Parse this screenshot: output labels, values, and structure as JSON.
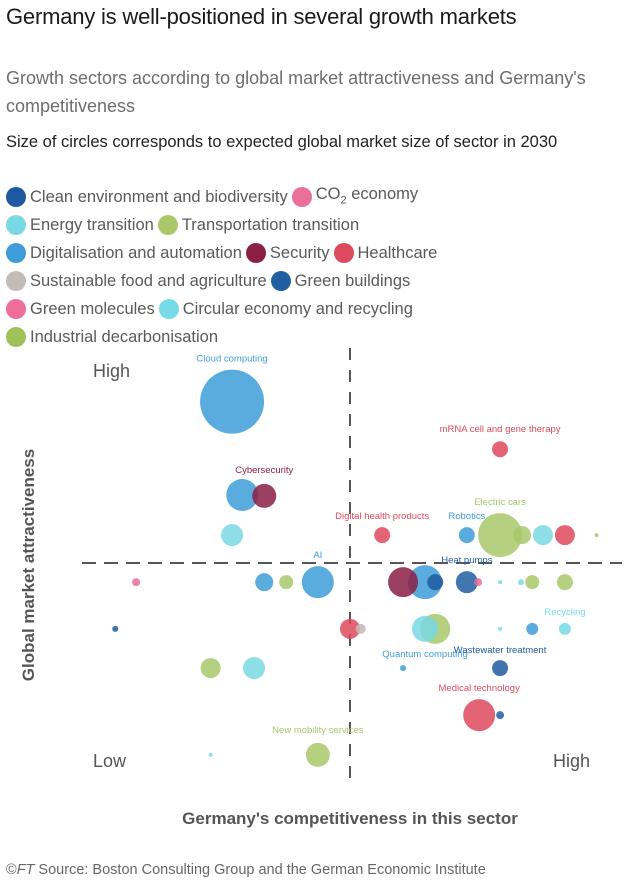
{
  "header": {
    "title": "Germany is well-positioned in several growth markets",
    "subtitle": "Growth sectors according to global market attractiveness and Germany's competitiveness",
    "note": "Size of circles corresponds to expected global market size of sector in 2030"
  },
  "colors": {
    "clean_env": "#1f5aa0",
    "co2": "#ea6f99",
    "energy": "#79d8e3",
    "transport": "#a8c86a",
    "digital": "#3e9dd8",
    "security": "#8b1f45",
    "healthcare": "#de4a5d",
    "food": "#c4bbb6",
    "green_buildings": "#205ea2",
    "green_molecules": "#ee6e98",
    "circular": "#76dbe6",
    "industrial": "#9ec258"
  },
  "legend": {
    "rows": [
      [
        {
          "key": "clean_env",
          "label": "Clean environment and biodiversity"
        },
        {
          "key": "co2",
          "label": "CO",
          "sub": "2",
          "suffix": " economy"
        }
      ],
      [
        {
          "key": "energy",
          "label": "Energy transition"
        },
        {
          "key": "transport",
          "label": "Transportation transition"
        }
      ],
      [
        {
          "key": "digital",
          "label": "Digitalisation and automation"
        },
        {
          "key": "security",
          "label": "Security"
        },
        {
          "key": "healthcare",
          "label": "Healthcare"
        }
      ],
      [
        {
          "key": "food",
          "label": "Sustainable food and agriculture"
        },
        {
          "key": "green_buildings",
          "label": "Green buildings"
        }
      ],
      [
        {
          "key": "green_molecules",
          "label": "Green molecules"
        },
        {
          "key": "circular",
          "label": "Circular economy and recycling"
        }
      ],
      [
        {
          "key": "industrial",
          "label": "Industrial decarbonisation"
        }
      ]
    ]
  },
  "chart_data": {
    "type": "scatter",
    "subtype": "bubble",
    "title": "Germany is well-positioned in several growth markets",
    "xlabel": "Germany's competitiveness in this sector",
    "ylabel": "Global market attractiveness",
    "x_axis_words": {
      "low": "Low",
      "high": "High"
    },
    "y_axis_words": {
      "high": "High"
    },
    "xlim": [
      0,
      10
    ],
    "ylim": [
      0,
      10
    ],
    "divider": {
      "x": 5,
      "y": 5
    },
    "grid": false,
    "size_note": "relative expected global market size in 2030",
    "points": [
      {
        "label": "Cloud computing",
        "sector": "digital",
        "x": 2.8,
        "y": 8.7,
        "size": 32
      },
      {
        "label": "Cybersecurity",
        "sector": "digital",
        "x": 2.99,
        "y": 6.56,
        "size": 16
      },
      {
        "label": "",
        "sector": "security",
        "x": 3.4,
        "y": 6.54,
        "size": 12
      },
      {
        "label": "",
        "sector": "energy",
        "x": 2.8,
        "y": 5.64,
        "size": 11
      },
      {
        "label": "",
        "sector": "co2",
        "x": 1.01,
        "y": 4.56,
        "size": 4
      },
      {
        "label": "",
        "sector": "digital",
        "x": 3.4,
        "y": 4.56,
        "size": 9
      },
      {
        "label": "",
        "sector": "transport",
        "x": 3.81,
        "y": 4.56,
        "size": 7
      },
      {
        "label": "AI",
        "sector": "digital",
        "x": 4.4,
        "y": 4.56,
        "size": 16
      },
      {
        "label": "",
        "sector": "clean_env",
        "x": 0.62,
        "y": 3.49,
        "size": 3
      },
      {
        "label": "",
        "sector": "healthcare",
        "x": 5.0,
        "y": 3.49,
        "size": 10
      },
      {
        "label": "",
        "sector": "food",
        "x": 5.2,
        "y": 3.49,
        "size": 5
      },
      {
        "label": "",
        "sector": "transport",
        "x": 2.4,
        "y": 2.59,
        "size": 10
      },
      {
        "label": "",
        "sector": "energy",
        "x": 3.21,
        "y": 2.59,
        "size": 11
      },
      {
        "label": "",
        "sector": "energy",
        "x": 2.4,
        "y": 0.6,
        "size": 2
      },
      {
        "label": "New mobility services",
        "sector": "transport",
        "x": 4.4,
        "y": 0.6,
        "size": 12
      },
      {
        "label": "mRNA cell and gene therapy",
        "sector": "healthcare",
        "x": 7.8,
        "y": 7.61,
        "size": 8
      },
      {
        "label": "Digital health products",
        "sector": "healthcare",
        "x": 5.6,
        "y": 5.64,
        "size": 8
      },
      {
        "label": "Robotics",
        "sector": "digital",
        "x": 7.18,
        "y": 5.64,
        "size": 8
      },
      {
        "label": "Electric cars",
        "sector": "transport",
        "x": 7.8,
        "y": 5.64,
        "size": 22
      },
      {
        "label": "",
        "sector": "transport",
        "x": 8.21,
        "y": 5.64,
        "size": 9
      },
      {
        "label": "",
        "sector": "energy",
        "x": 8.6,
        "y": 5.64,
        "size": 10
      },
      {
        "label": "",
        "sector": "healthcare",
        "x": 9.01,
        "y": 5.64,
        "size": 10
      },
      {
        "label": "",
        "sector": "transport",
        "x": 9.6,
        "y": 5.64,
        "size": 2
      },
      {
        "label": "",
        "sector": "security",
        "x": 5.99,
        "y": 4.56,
        "size": 15
      },
      {
        "label": "",
        "sector": "digital",
        "x": 6.4,
        "y": 4.56,
        "size": 17
      },
      {
        "label": "",
        "sector": "clean_env",
        "x": 6.59,
        "y": 4.56,
        "size": 8
      },
      {
        "label": "Heat pumps",
        "sector": "green_buildings",
        "x": 7.18,
        "y": 4.56,
        "size": 11
      },
      {
        "label": "",
        "sector": "co2",
        "x": 7.39,
        "y": 4.56,
        "size": 4
      },
      {
        "label": "",
        "sector": "energy",
        "x": 7.8,
        "y": 4.56,
        "size": 2
      },
      {
        "label": "",
        "sector": "energy",
        "x": 8.19,
        "y": 4.56,
        "size": 3
      },
      {
        "label": "",
        "sector": "transport",
        "x": 8.4,
        "y": 4.56,
        "size": 7
      },
      {
        "label": "",
        "sector": "transport",
        "x": 9.01,
        "y": 4.56,
        "size": 8
      },
      {
        "label": "Quantum computing",
        "sector": "energy",
        "x": 6.4,
        "y": 3.49,
        "size": 13
      },
      {
        "label": "",
        "sector": "transport",
        "x": 6.59,
        "y": 3.49,
        "size": 15
      },
      {
        "label": "",
        "sector": "energy",
        "x": 7.8,
        "y": 3.49,
        "size": 2
      },
      {
        "label": "",
        "sector": "digital",
        "x": 8.4,
        "y": 3.49,
        "size": 6
      },
      {
        "label": "Recycling",
        "sector": "circular",
        "x": 9.01,
        "y": 3.49,
        "size": 6
      },
      {
        "label": "",
        "sector": "digital",
        "x": 5.99,
        "y": 2.59,
        "size": 3
      },
      {
        "label": "Wastewater treatment",
        "sector": "clean_env",
        "x": 7.8,
        "y": 2.59,
        "size": 8
      },
      {
        "label": "Medical technology",
        "sector": "healthcare",
        "x": 7.41,
        "y": 1.51,
        "size": 16
      },
      {
        "label": "",
        "sector": "green_buildings",
        "x": 7.8,
        "y": 1.51,
        "size": 4
      }
    ]
  },
  "footer": {
    "copyright": "©",
    "brand": "FT",
    "source": " Source: Boston Consulting Group and the German Economic Institute"
  }
}
